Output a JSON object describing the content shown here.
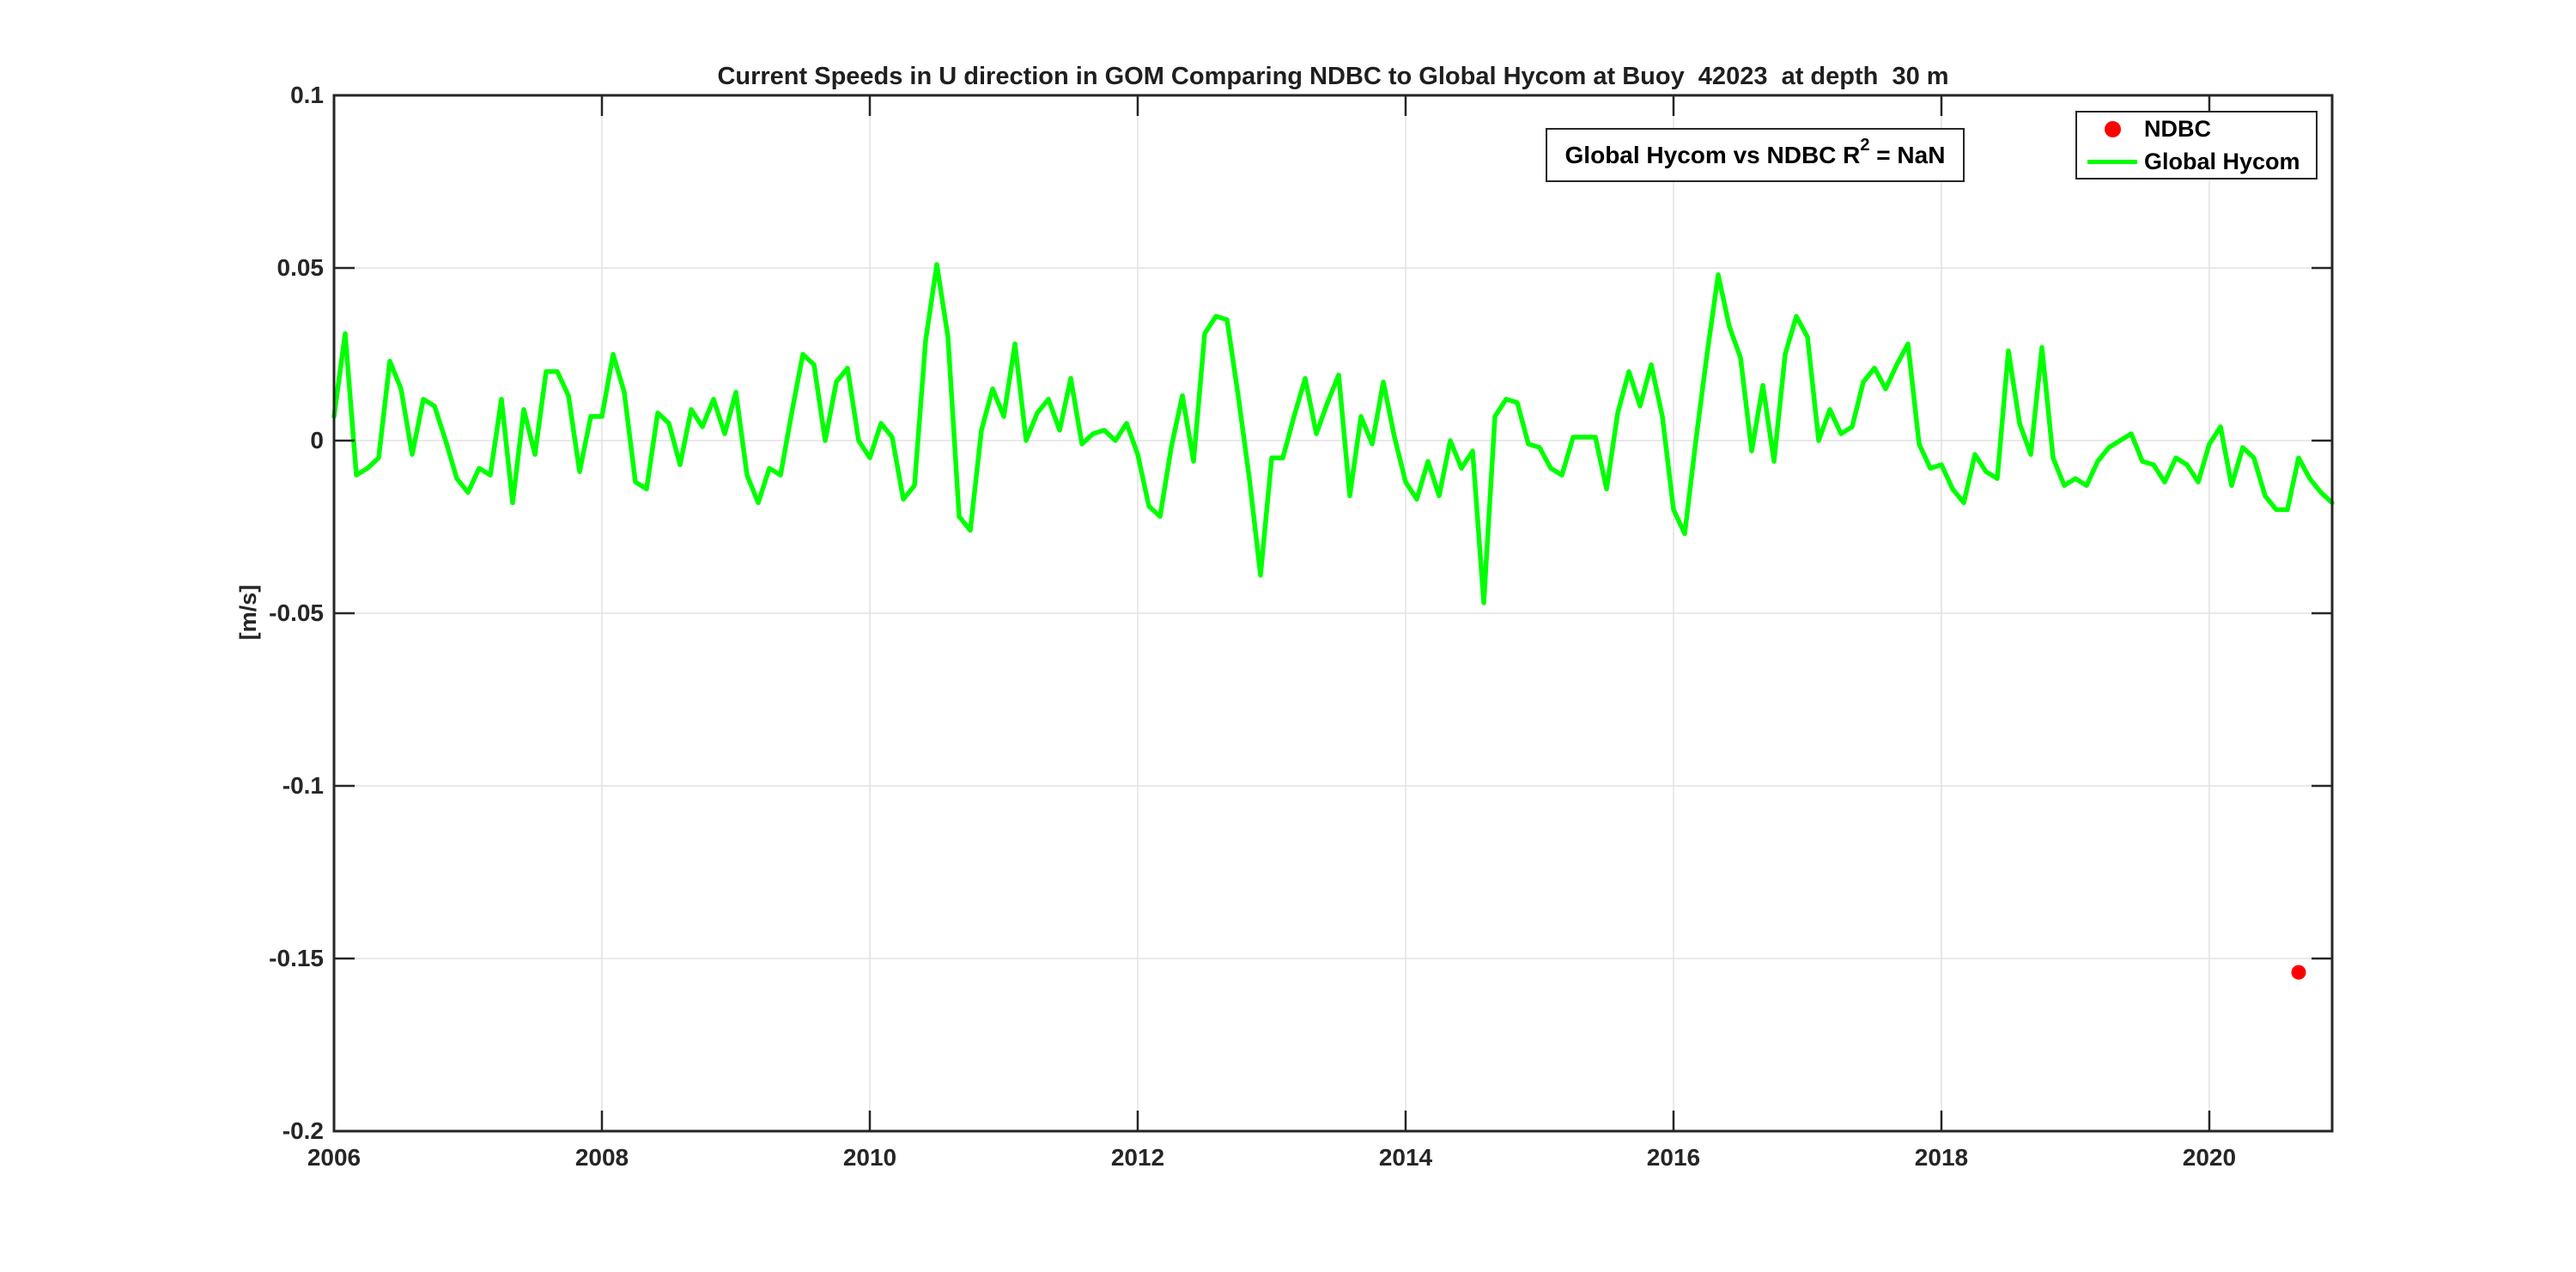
{
  "figure": {
    "title": "Current Speeds in U direction in GOM Comparing NDBC to Global Hycom at Buoy  42023  at depth  30 m",
    "ylabel": "[m/s]",
    "annotation": {
      "prefix": "Global Hycom vs NDBC R",
      "sup": "2",
      "suffix": " = NaN"
    },
    "legend": {
      "items": [
        {
          "label": "NDBC",
          "marker": "dot",
          "color": "#ff0000"
        },
        {
          "label": "Global Hycom",
          "marker": "line",
          "color": "#00ff00"
        }
      ]
    }
  },
  "chart_data": {
    "type": "line",
    "title": "Current Speeds in U direction in GOM Comparing NDBC to Global Hycom at Buoy  42023  at depth  30 m",
    "xlabel": "",
    "ylabel": "[m/s]",
    "annotation": "Global Hycom vs NDBC R² = NaN",
    "r_squared": "NaN",
    "grid": true,
    "legend_position": "northeast",
    "xlim": [
      2006,
      2020.917
    ],
    "ylim": [
      -0.2,
      0.1
    ],
    "xticks": [
      2006,
      2008,
      2010,
      2012,
      2014,
      2016,
      2018,
      2020
    ],
    "xtick_labels": [
      "2006",
      "2008",
      "2010",
      "2012",
      "2014",
      "2016",
      "2018",
      "2020"
    ],
    "yticks": [
      0.1,
      0.05,
      0,
      -0.05,
      -0.1,
      -0.15,
      -0.2
    ],
    "ytick_labels": [
      "0.1",
      "0.05",
      "0",
      "-0.05",
      "-0.1",
      "-0.15",
      "-0.2"
    ],
    "series": [
      {
        "name": "Global Hycom",
        "type": "line",
        "color": "#00ff00",
        "x_start": 2006.0,
        "x_step_years": 0.0833333,
        "values": [
          0.007,
          0.031,
          -0.01,
          -0.008,
          -0.005,
          0.023,
          0.015,
          -0.004,
          0.012,
          0.01,
          0.0,
          -0.011,
          -0.015,
          -0.008,
          -0.01,
          0.012,
          -0.018,
          0.009,
          -0.004,
          0.02,
          0.02,
          0.013,
          -0.009,
          0.007,
          0.007,
          0.025,
          0.014,
          -0.012,
          -0.014,
          0.008,
          0.005,
          -0.007,
          0.009,
          0.004,
          0.012,
          0.002,
          0.014,
          -0.01,
          -0.018,
          -0.008,
          -0.01,
          0.008,
          0.025,
          0.022,
          0.0,
          0.017,
          0.021,
          0.0,
          -0.005,
          0.005,
          0.001,
          -0.017,
          -0.013,
          0.029,
          0.051,
          0.03,
          -0.022,
          -0.026,
          0.003,
          0.015,
          0.007,
          0.028,
          0.0,
          0.008,
          0.012,
          0.003,
          0.018,
          -0.001,
          0.002,
          0.003,
          0.0,
          0.005,
          -0.004,
          -0.019,
          -0.022,
          -0.002,
          0.013,
          -0.006,
          0.031,
          0.036,
          0.035,
          0.013,
          -0.011,
          -0.039,
          -0.005,
          -0.005,
          0.007,
          0.018,
          0.002,
          0.011,
          0.019,
          -0.016,
          0.007,
          -0.001,
          0.017,
          0.001,
          -0.012,
          -0.017,
          -0.006,
          -0.016,
          0.0,
          -0.008,
          -0.003,
          -0.047,
          0.007,
          0.012,
          0.011,
          -0.001,
          -0.002,
          -0.008,
          -0.01,
          0.001,
          0.001,
          0.001,
          -0.014,
          0.008,
          0.02,
          0.01,
          0.022,
          0.007,
          -0.02,
          -0.027,
          0.0,
          0.025,
          0.048,
          0.033,
          0.024,
          -0.003,
          0.016,
          -0.006,
          0.025,
          0.036,
          0.03,
          0.0,
          0.009,
          0.002,
          0.004,
          0.017,
          0.021,
          0.015,
          0.022,
          0.028,
          -0.001,
          -0.008,
          -0.007,
          -0.014,
          -0.018,
          -0.004,
          -0.009,
          -0.011,
          0.026,
          0.005,
          -0.004,
          0.027,
          -0.005,
          -0.013,
          -0.011,
          -0.013,
          -0.006,
          -0.002,
          0.0,
          0.002,
          -0.006,
          -0.007,
          -0.012,
          -0.005,
          -0.007,
          -0.012,
          -0.001,
          0.004,
          -0.013,
          -0.002,
          -0.005,
          -0.016,
          -0.02,
          -0.02,
          -0.005,
          -0.011,
          -0.015,
          -0.018
        ]
      },
      {
        "name": "NDBC",
        "type": "scatter",
        "color": "#ff0000",
        "points": [
          {
            "x": 2020.667,
            "y": -0.154
          }
        ]
      }
    ],
    "style": {
      "grid_color": "#e2e2e2",
      "axis_color": "#262626",
      "line_width": 5.5,
      "marker_radius": 8.5
    }
  }
}
